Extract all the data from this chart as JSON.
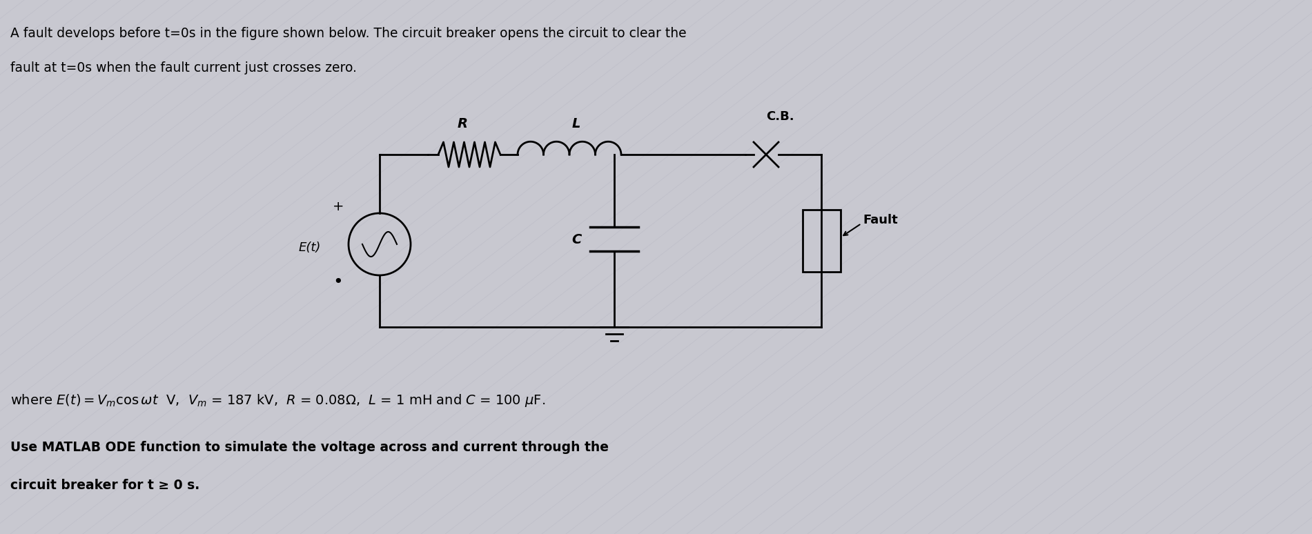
{
  "bg_color": "#c8c8d0",
  "text_color": "#000000",
  "title_line1": "A fault develops before t=0s in the figure shown below. The circuit breaker opens the circuit to clear the",
  "title_line2": "fault at t=0s when the fault current just crosses zero.",
  "formula_line": "where E(t) = V_m cosωt  V, V_m = 187 kV,  R = 0.08Ω,  L = 1 mH and C = 100 μF.",
  "bottom_line1": "Use MATLAB ODE function to simulate the voltage across and current through the",
  "bottom_line2": "circuit breaker for t ≥ 0 s.",
  "label_R": "R",
  "label_L": "L",
  "label_CB": "C.B.",
  "label_C": "C",
  "label_Et": "E(t)",
  "label_Fault": "Fault",
  "label_plus": "+",
  "label_minus": "•",
  "fig_width": 19.01,
  "fig_height": 7.74,
  "dpi": 100
}
